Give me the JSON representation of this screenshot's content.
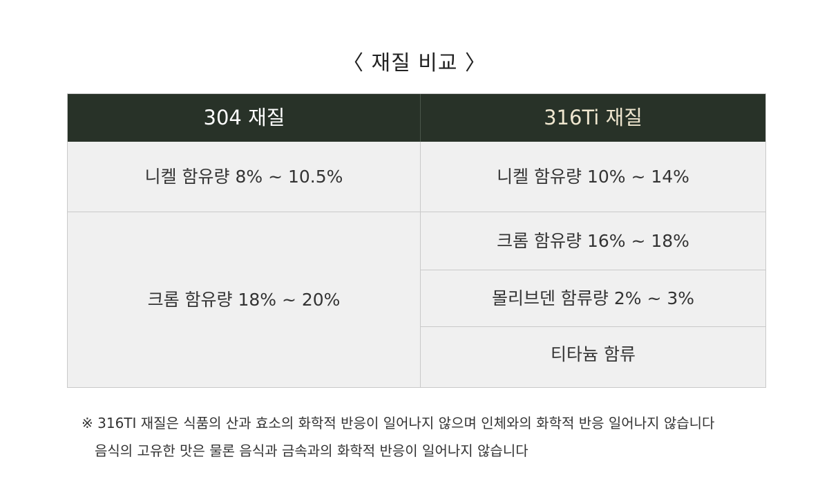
{
  "title": "〈 재질 비교 〉",
  "table": {
    "headers": {
      "left": "304 재질",
      "right": "316Ti 재질"
    },
    "left_rows": [
      "니켈 함유량 8% ~ 10.5%",
      "크롬 함유량 18% ~ 20%"
    ],
    "right_rows": [
      "니켈 함유량 10% ~ 14%",
      "크롬 함유량 16% ~ 18%",
      "몰리브덴 함류량  2% ~ 3%",
      "티타늄 함류"
    ]
  },
  "notes": {
    "line1": "※ 316TI 재질은 식품의 산과 효소의 화학적 반응이 일어나지 않으며 인체와의 화학적 반응 일어나지 않습니다",
    "line2": "음식의 고유한 맛은 물론 음식과 금속과의 화학적 반응이 일어나지 않습니다"
  }
}
